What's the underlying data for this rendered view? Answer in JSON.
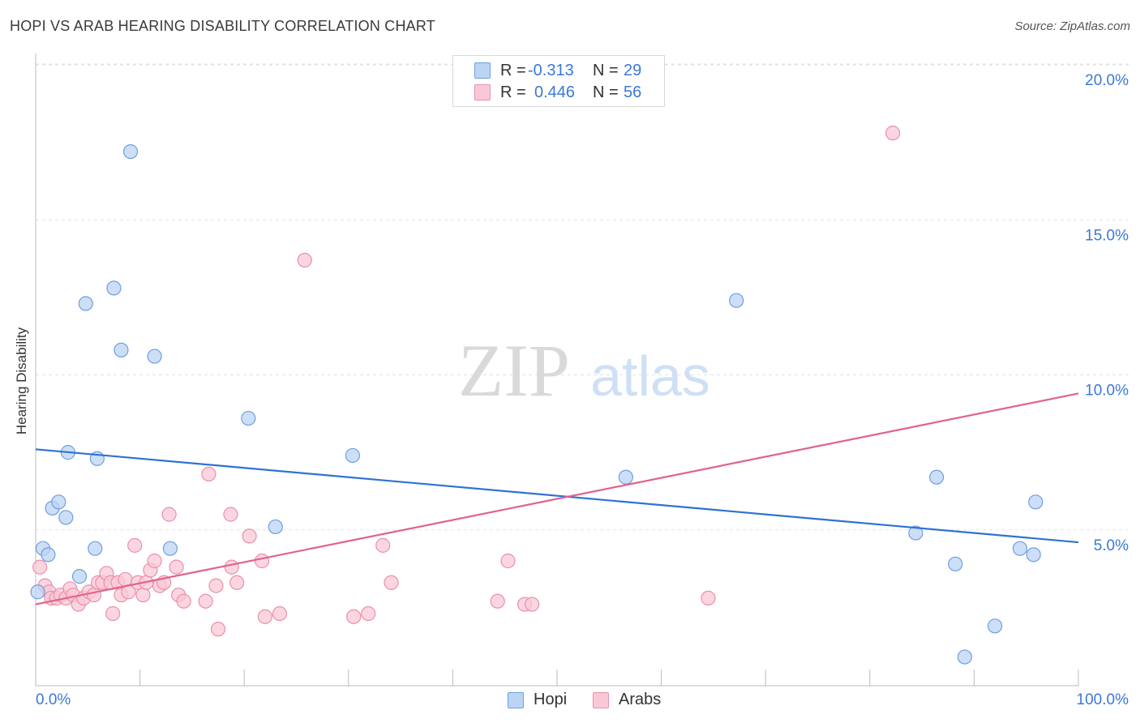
{
  "header": {
    "title": "HOPI VS ARAB HEARING DISABILITY CORRELATION CHART",
    "source": "Source: ZipAtlas.com"
  },
  "legend": {
    "rows": [
      {
        "r_label": "R =",
        "r_value": "-0.313",
        "n_label": "N =",
        "n_value": "29",
        "color": "#a8c8f0",
        "border": "#6d9fe0"
      },
      {
        "r_label": "R =",
        "r_value": "0.446",
        "n_label": "N =",
        "n_value": "56",
        "color": "#f8c0d0",
        "border": "#e890aa"
      }
    ]
  },
  "bottom_legend": {
    "hopi": "Hopi",
    "arabs": "Arabs"
  },
  "watermark": {
    "zip": "ZIP",
    "atlas": "atlas"
  },
  "chart_data": {
    "type": "scatter",
    "title": "HOPI VS ARAB HEARING DISABILITY CORRELATION CHART",
    "ylabel": "Hearing Disability",
    "xlabel": "",
    "xlim": [
      0,
      100
    ],
    "ylim": [
      0,
      20
    ],
    "x_tick_labels": [
      "0.0%",
      "100.0%"
    ],
    "y_ticks": [
      5,
      10,
      15,
      20
    ],
    "y_tick_labels": [
      "5.0%",
      "10.0%",
      "15.0%",
      "20.0%"
    ],
    "grid": true,
    "series": [
      {
        "name": "Hopi",
        "color": "#6d9fe0",
        "fill": "#bcd4f4",
        "trend": {
          "x": [
            0,
            100
          ],
          "y": [
            7.6,
            4.6
          ],
          "color": "#2e72d2"
        },
        "points": [
          [
            0.2,
            3.0
          ],
          [
            0.7,
            4.4
          ],
          [
            1.2,
            4.2
          ],
          [
            1.6,
            5.7
          ],
          [
            2.2,
            5.9
          ],
          [
            2.9,
            5.4
          ],
          [
            3.1,
            7.5
          ],
          [
            4.2,
            3.5
          ],
          [
            4.8,
            12.3
          ],
          [
            5.7,
            4.4
          ],
          [
            5.9,
            7.3
          ],
          [
            7.5,
            12.8
          ],
          [
            8.2,
            10.8
          ],
          [
            9.1,
            17.2
          ],
          [
            11.4,
            10.6
          ],
          [
            12.9,
            4.4
          ],
          [
            20.4,
            8.6
          ],
          [
            23.0,
            5.1
          ],
          [
            30.4,
            7.4
          ],
          [
            56.6,
            6.7
          ],
          [
            67.2,
            12.4
          ],
          [
            84.4,
            4.9
          ],
          [
            86.4,
            6.7
          ],
          [
            88.2,
            3.9
          ],
          [
            89.1,
            0.9
          ],
          [
            92.0,
            1.9
          ],
          [
            94.4,
            4.4
          ],
          [
            95.7,
            4.2
          ],
          [
            95.9,
            5.9
          ]
        ]
      },
      {
        "name": "Arabs",
        "color": "#e890aa",
        "fill": "#f9c8d6",
        "trend": {
          "x": [
            0,
            100
          ],
          "y": [
            2.6,
            9.4
          ],
          "color": "#e0628e"
        },
        "points": [
          [
            0.4,
            3.8
          ],
          [
            0.9,
            3.2
          ],
          [
            1.3,
            3.0
          ],
          [
            1.5,
            2.8
          ],
          [
            2.0,
            2.8
          ],
          [
            2.4,
            2.9
          ],
          [
            2.9,
            2.8
          ],
          [
            3.3,
            3.1
          ],
          [
            3.6,
            2.9
          ],
          [
            4.1,
            2.6
          ],
          [
            4.6,
            2.8
          ],
          [
            5.1,
            3.0
          ],
          [
            5.6,
            2.9
          ],
          [
            6.0,
            3.3
          ],
          [
            6.4,
            3.3
          ],
          [
            6.8,
            3.6
          ],
          [
            7.2,
            3.3
          ],
          [
            7.4,
            2.3
          ],
          [
            7.9,
            3.3
          ],
          [
            8.2,
            2.9
          ],
          [
            8.6,
            3.4
          ],
          [
            8.9,
            3.0
          ],
          [
            9.5,
            4.5
          ],
          [
            9.8,
            3.3
          ],
          [
            10.3,
            2.9
          ],
          [
            10.6,
            3.3
          ],
          [
            11.0,
            3.7
          ],
          [
            11.4,
            4.0
          ],
          [
            11.9,
            3.2
          ],
          [
            12.3,
            3.3
          ],
          [
            12.8,
            5.5
          ],
          [
            13.5,
            3.8
          ],
          [
            13.7,
            2.9
          ],
          [
            14.2,
            2.7
          ],
          [
            16.3,
            2.7
          ],
          [
            16.6,
            6.8
          ],
          [
            17.3,
            3.2
          ],
          [
            17.5,
            1.8
          ],
          [
            18.7,
            5.5
          ],
          [
            18.8,
            3.8
          ],
          [
            19.3,
            3.3
          ],
          [
            20.5,
            4.8
          ],
          [
            21.7,
            4.0
          ],
          [
            22.0,
            2.2
          ],
          [
            23.4,
            2.3
          ],
          [
            25.8,
            13.7
          ],
          [
            30.5,
            2.2
          ],
          [
            31.9,
            2.3
          ],
          [
            33.3,
            4.5
          ],
          [
            34.1,
            3.3
          ],
          [
            44.3,
            2.7
          ],
          [
            45.3,
            4.0
          ],
          [
            46.9,
            2.6
          ],
          [
            47.6,
            2.6
          ],
          [
            64.5,
            2.8
          ],
          [
            82.2,
            17.8
          ]
        ]
      }
    ]
  }
}
